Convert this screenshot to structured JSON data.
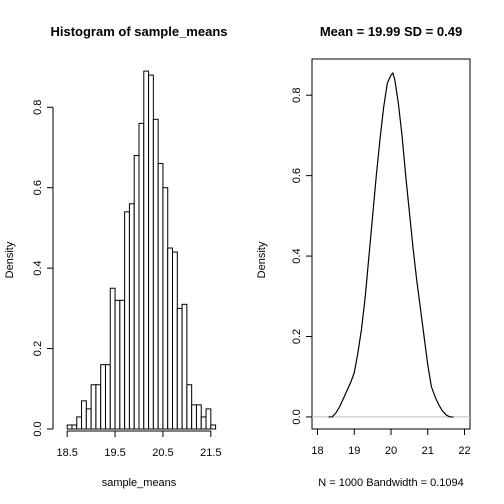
{
  "chart_data": [
    {
      "type": "bar",
      "title": "Histogram of sample_means",
      "xlabel": "sample_means",
      "ylabel": "Density",
      "xlim": [
        18.35,
        21.65
      ],
      "ylim": [
        0,
        0.92
      ],
      "xticks": [
        {
          "value": 18.5,
          "label": "18.5"
        },
        {
          "value": 19.5,
          "label": "19.5"
        },
        {
          "value": 20.5,
          "label": "20.5"
        },
        {
          "value": 21.5,
          "label": "21.5"
        }
      ],
      "yticks": [
        {
          "value": 0.0,
          "label": "0.0"
        },
        {
          "value": 0.2,
          "label": "0.2"
        },
        {
          "value": 0.4,
          "label": "0.4"
        },
        {
          "value": 0.6,
          "label": "0.6"
        },
        {
          "value": 0.8,
          "label": "0.8"
        }
      ],
      "bin_edges": [
        18.5,
        18.6,
        18.7,
        18.8,
        18.9,
        19.0,
        19.1,
        19.2,
        19.3,
        19.4,
        19.5,
        19.6,
        19.7,
        19.8,
        19.9,
        20.0,
        20.1,
        20.2,
        20.3,
        20.4,
        20.5,
        20.6,
        20.7,
        20.8,
        20.9,
        21.0,
        21.1,
        21.2,
        21.3,
        21.4,
        21.5,
        21.6
      ],
      "values": [
        0.01,
        0.01,
        0.03,
        0.07,
        0.05,
        0.11,
        0.11,
        0.16,
        0.16,
        0.35,
        0.32,
        0.32,
        0.54,
        0.56,
        0.68,
        0.76,
        0.89,
        0.88,
        0.77,
        0.66,
        0.6,
        0.45,
        0.44,
        0.3,
        0.31,
        0.11,
        0.06,
        0.06,
        0.03,
        0.05,
        0.01
      ]
    },
    {
      "type": "line",
      "title": "Mean =  19.99 SD =  0.49",
      "caption": "N = 1000   Bandwidth = 0.1094",
      "ylabel": "Density",
      "xlim": [
        17.85,
        22.15
      ],
      "ylim": [
        -0.03,
        0.89
      ],
      "baseline": 0,
      "xticks": [
        {
          "value": 18,
          "label": "18"
        },
        {
          "value": 19,
          "label": "19"
        },
        {
          "value": 20,
          "label": "20"
        },
        {
          "value": 21,
          "label": "21"
        },
        {
          "value": 22,
          "label": "22"
        }
      ],
      "yticks": [
        {
          "value": 0.0,
          "label": "0.0"
        },
        {
          "value": 0.2,
          "label": "0.2"
        },
        {
          "value": 0.4,
          "label": "0.4"
        },
        {
          "value": 0.6,
          "label": "0.6"
        },
        {
          "value": 0.8,
          "label": "0.8"
        }
      ],
      "x": [
        18.3,
        18.4,
        18.5,
        18.6,
        18.7,
        18.8,
        18.9,
        19.0,
        19.1,
        19.2,
        19.3,
        19.4,
        19.5,
        19.6,
        19.7,
        19.8,
        19.9,
        20.0,
        20.05,
        20.1,
        20.2,
        20.3,
        20.4,
        20.5,
        20.6,
        20.7,
        20.8,
        20.9,
        21.0,
        21.1,
        21.2,
        21.3,
        21.4,
        21.5,
        21.6,
        21.7
      ],
      "y": [
        0.0,
        0.0,
        0.01,
        0.025,
        0.045,
        0.065,
        0.085,
        0.11,
        0.16,
        0.22,
        0.3,
        0.4,
        0.5,
        0.6,
        0.69,
        0.77,
        0.83,
        0.85,
        0.855,
        0.84,
        0.78,
        0.7,
        0.6,
        0.51,
        0.42,
        0.34,
        0.27,
        0.2,
        0.13,
        0.075,
        0.05,
        0.03,
        0.015,
        0.005,
        0.0,
        0.0
      ]
    }
  ]
}
